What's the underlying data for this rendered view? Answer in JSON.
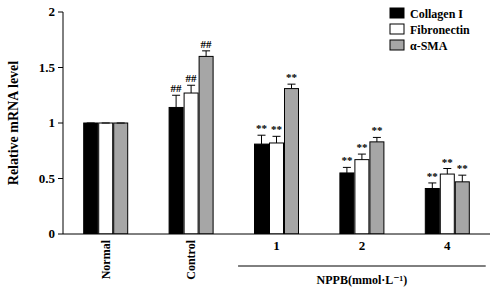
{
  "chart_data": {
    "type": "bar",
    "y_label": "Relative mRNA level",
    "categories": [
      "Normal",
      "Control",
      "1",
      "2",
      "4"
    ],
    "x_group": {
      "label": "NPPB(mmol·L⁻¹)",
      "categories": [
        "1",
        "2",
        "4"
      ]
    },
    "series": [
      {
        "name": "Collagen I",
        "color": "#000000",
        "values": [
          1,
          1.14,
          0.81,
          0.55,
          0.41
        ],
        "errors": [
          0,
          0.11,
          0.08,
          0.05,
          0.05
        ],
        "significance": [
          null,
          "##",
          "**",
          "**",
          "**"
        ]
      },
      {
        "name": "Fibronectin",
        "color": "#ffffff",
        "values": [
          1,
          1.27,
          0.82,
          0.67,
          0.54
        ],
        "errors": [
          0,
          0.07,
          0.06,
          0.05,
          0.05
        ],
        "significance": [
          null,
          "##",
          "**",
          "**",
          "**"
        ]
      },
      {
        "name": "α-SMA",
        "color": "#a6a6a6",
        "values": [
          1,
          1.6,
          1.31,
          0.83,
          0.47
        ],
        "errors": [
          0,
          0.05,
          0.04,
          0.04,
          0.06
        ],
        "significance": [
          null,
          "##",
          "**",
          "**",
          "**"
        ]
      }
    ],
    "ylim": [
      0,
      2
    ],
    "yticks": [
      0,
      0.5,
      1,
      1.5,
      2
    ],
    "legend": "top-right",
    "grid": false
  }
}
